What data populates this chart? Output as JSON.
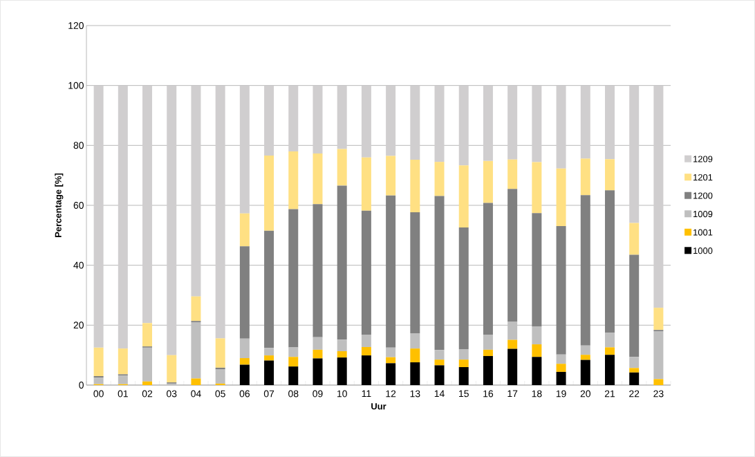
{
  "chart_data": {
    "type": "bar",
    "stacked": true,
    "xlabel": "Uur",
    "ylabel": "Percentage [%]",
    "categories": [
      "00",
      "01",
      "02",
      "03",
      "04",
      "05",
      "06",
      "07",
      "08",
      "09",
      "10",
      "11",
      "12",
      "13",
      "14",
      "15",
      "16",
      "17",
      "18",
      "19",
      "20",
      "21",
      "22",
      "23"
    ],
    "ylim": [
      0,
      120
    ],
    "yticks": [
      0,
      20,
      40,
      60,
      80,
      100,
      120
    ],
    "grid": "y",
    "legend": "right",
    "series": [
      {
        "name": "1000",
        "color": "#000000",
        "values": [
          0,
          0,
          0,
          0,
          0,
          0,
          6.8,
          8.2,
          6.2,
          8.9,
          9.2,
          9.9,
          7.3,
          7.6,
          6.6,
          6,
          9.7,
          12.1,
          9.4,
          4.4,
          8.4,
          10.1,
          4.2,
          0
        ]
      },
      {
        "name": "1001",
        "color": "#ffc000",
        "values": [
          0.3,
          0.3,
          1.2,
          0,
          2.2,
          0.5,
          2.2,
          1.7,
          3.2,
          2.9,
          2.1,
          2.8,
          2,
          4.6,
          1.9,
          2.5,
          2.1,
          3,
          4.2,
          2.7,
          1.7,
          2.5,
          1.5,
          2
        ]
      },
      {
        "name": "1009",
        "color": "#bfbfbf",
        "values": [
          2.2,
          2.9,
          11.3,
          0.5,
          18.8,
          4.8,
          6.5,
          2.5,
          3.2,
          4.2,
          3.9,
          4,
          3.2,
          5.1,
          3.2,
          3.5,
          4.9,
          6,
          5.9,
          3.1,
          3.1,
          4.9,
          3.7,
          16
        ]
      },
      {
        "name": "1200",
        "color": "#808080",
        "values": [
          0.5,
          0.4,
          0.4,
          0.4,
          0.4,
          0.5,
          30.8,
          39.1,
          46.1,
          44.4,
          51.4,
          41.5,
          50.8,
          40.4,
          51.4,
          40.6,
          44.1,
          44.4,
          37.9,
          42.9,
          50.2,
          47.5,
          34.1,
          0.4
        ]
      },
      {
        "name": "1201",
        "color": "#ffe083",
        "values": [
          9.5,
          8.6,
          7.8,
          9.1,
          8.2,
          9.8,
          11,
          25.1,
          19.3,
          16.9,
          12.2,
          17.8,
          13.2,
          17.5,
          11.4,
          20.7,
          14,
          9.8,
          17,
          19.2,
          12.2,
          10.4,
          10.6,
          7.4
        ]
      },
      {
        "name": "1209",
        "color": "#d0cecf",
        "values": [
          87.5,
          87.8,
          79.3,
          90,
          70.4,
          84.4,
          42.7,
          23.4,
          22,
          22.7,
          21.2,
          24,
          23.5,
          24.8,
          25.5,
          26.7,
          25.2,
          24.7,
          25.6,
          27.7,
          24.4,
          24.6,
          45.9,
          74.2
        ]
      }
    ]
  }
}
